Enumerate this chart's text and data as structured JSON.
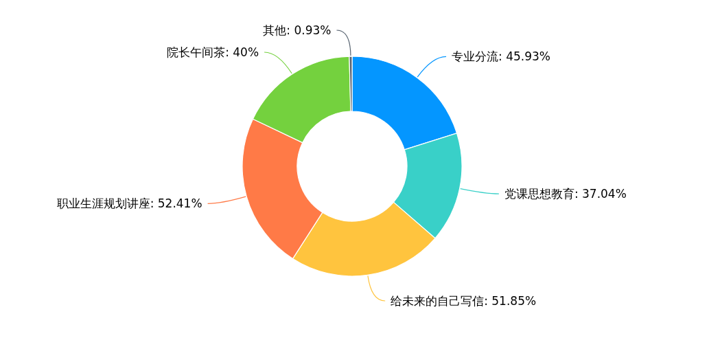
{
  "chart_data": {
    "type": "donut",
    "categories": [
      "专业分流",
      "党课思想教育",
      "给未来的自己写信",
      "职业生涯规划讲座",
      "院长午间茶",
      "其他"
    ],
    "values": [
      45.93,
      37.04,
      51.85,
      52.41,
      40,
      0.93
    ],
    "value_labels": [
      "45.93%",
      "37.04%",
      "51.85%",
      "52.41%",
      "40%",
      "0.93%"
    ],
    "colors": [
      "#0496ff",
      "#39d0c8",
      "#ffc43e",
      "#ff7a47",
      "#74d13e",
      "#56626f"
    ]
  }
}
